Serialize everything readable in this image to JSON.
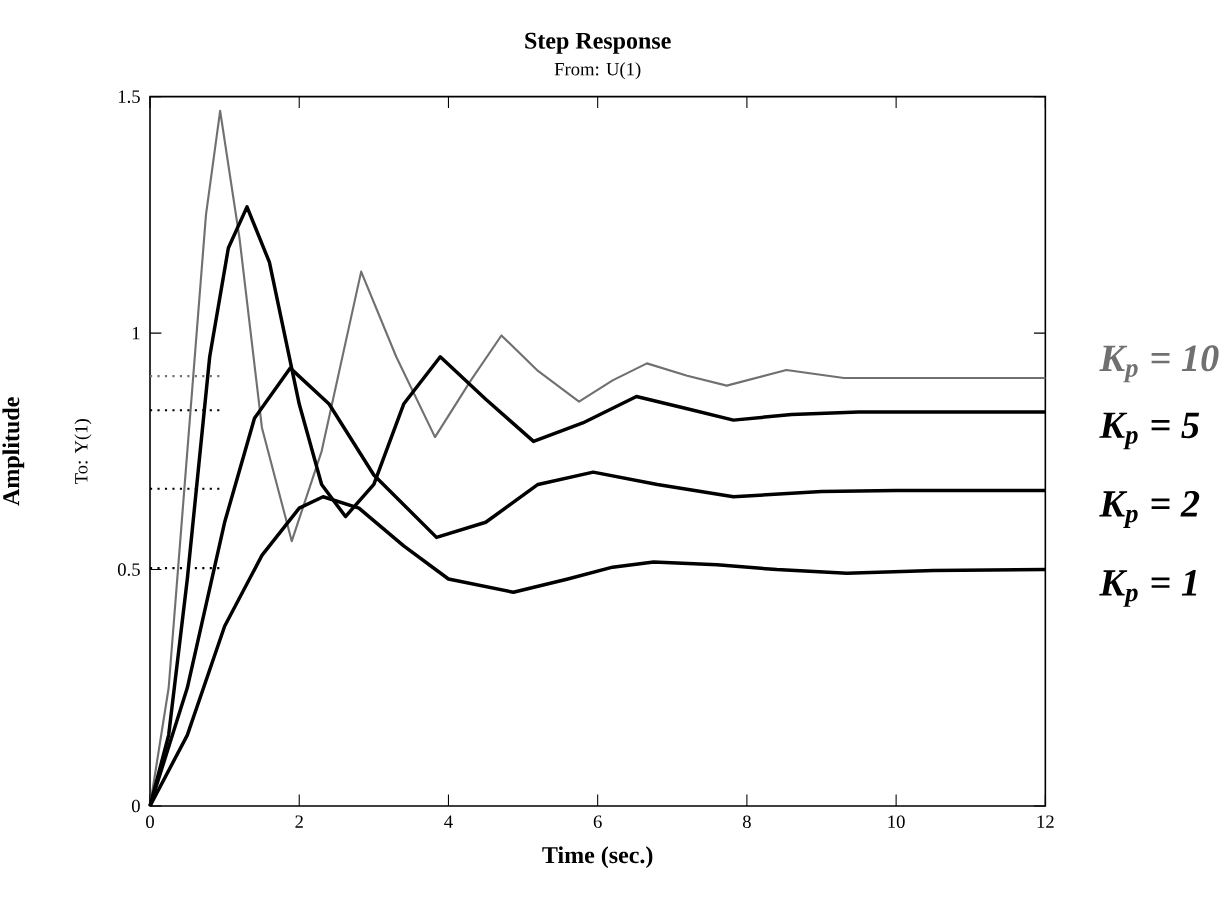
{
  "chart_data": {
    "type": "line",
    "title": "Step Response",
    "subtitle": "From: U(1)",
    "xlabel": "Time (sec.)",
    "ylabel": "Amplitude",
    "annotations": [
      "To: Y(1)"
    ],
    "xlim": [
      0,
      12
    ],
    "ylim": [
      0,
      1.5
    ],
    "xticks": [
      0,
      2,
      4,
      6,
      8,
      10,
      12
    ],
    "yticks": [
      0,
      0.5,
      1,
      1.5
    ],
    "grid": false,
    "legend": "right",
    "series": [
      {
        "name": "K$_{p}$ = 10",
        "color": "#707070",
        "x": [
          0,
          0.25,
          0.5,
          0.75,
          0.94,
          1.2,
          1.5,
          1.9,
          2.3,
          2.83,
          3.3,
          3.82,
          4.3,
          4.71,
          5.2,
          5.75,
          6.2,
          6.66,
          7.2,
          7.73,
          8.53,
          9.3,
          10,
          12
        ],
        "values": [
          0,
          0.25,
          0.75,
          1.25,
          1.47,
          1.2,
          0.8,
          0.56,
          0.75,
          1.13,
          0.95,
          0.78,
          0.9,
          0.995,
          0.92,
          0.855,
          0.9,
          0.936,
          0.91,
          0.889,
          0.922,
          0.905,
          0.905,
          0.905
        ]
      },
      {
        "name": "K$_{p}$ = 5",
        "color": "#000000",
        "x": [
          0,
          0.25,
          0.5,
          0.8,
          1.05,
          1.3,
          1.6,
          2.0,
          2.3,
          2.62,
          3.0,
          3.4,
          3.89,
          4.5,
          5.14,
          5.8,
          6.52,
          7.2,
          7.82,
          8.6,
          9.5,
          12
        ],
        "values": [
          0,
          0.15,
          0.48,
          0.95,
          1.18,
          1.267,
          1.15,
          0.85,
          0.68,
          0.612,
          0.68,
          0.85,
          0.95,
          0.86,
          0.771,
          0.81,
          0.866,
          0.84,
          0.816,
          0.828,
          0.833,
          0.833
        ]
      },
      {
        "name": "K$_{p}$ = 2",
        "color": "#000000",
        "x": [
          0,
          0.5,
          1.0,
          1.4,
          1.88,
          2.4,
          3.0,
          3.84,
          4.5,
          5.2,
          5.94,
          6.8,
          7.82,
          9.0,
          10,
          12
        ],
        "values": [
          0,
          0.25,
          0.6,
          0.82,
          0.926,
          0.85,
          0.7,
          0.568,
          0.6,
          0.68,
          0.706,
          0.68,
          0.654,
          0.665,
          0.667,
          0.667
        ]
      },
      {
        "name": "K$_{p}$ = 1",
        "color": "#000000",
        "x": [
          0,
          0.5,
          1.0,
          1.5,
          2.0,
          2.32,
          2.8,
          3.4,
          4.0,
          4.87,
          5.6,
          6.2,
          6.75,
          7.6,
          8.4,
          9.34,
          10.5,
          12
        ],
        "values": [
          0,
          0.15,
          0.38,
          0.53,
          0.63,
          0.654,
          0.63,
          0.55,
          0.48,
          0.452,
          0.48,
          0.505,
          0.516,
          0.51,
          0.5,
          0.492,
          0.498,
          0.5
        ]
      },
      {
        "color": "#707070",
        "line_style": "dotted",
        "x": [
          0,
          1
        ],
        "values": [
          0.909,
          0.909
        ]
      },
      {
        "color": "#000000",
        "line_style": "dotted",
        "x": [
          0,
          1
        ],
        "values": [
          0.837,
          0.837
        ]
      },
      {
        "color": "#000000",
        "line_style": "dotted",
        "x": [
          0,
          1
        ],
        "values": [
          0.671,
          0.671
        ]
      },
      {
        "color": "#000000",
        "line_style": "dotted",
        "x": [
          0,
          1
        ],
        "values": [
          0.503,
          0.503
        ]
      }
    ]
  }
}
